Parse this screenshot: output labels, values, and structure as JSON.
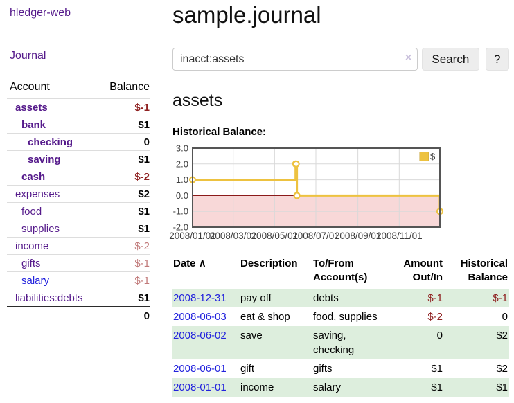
{
  "sidebar": {
    "app_title": "hledger-web",
    "journal_link": "Journal",
    "accounts": {
      "headers": {
        "account": "Account",
        "balance": "Balance"
      },
      "rows": [
        {
          "name": "assets",
          "depth": 1,
          "bold": true,
          "balance": "$-1",
          "balance_class": "neg-strong"
        },
        {
          "name": "bank",
          "depth": 2,
          "bold": true,
          "balance": "$1",
          "balance_class": "pos"
        },
        {
          "name": "checking",
          "depth": 3,
          "bold": true,
          "balance": "0",
          "balance_class": "pos"
        },
        {
          "name": "saving",
          "depth": 3,
          "bold": true,
          "balance": "$1",
          "balance_class": "pos"
        },
        {
          "name": "cash",
          "depth": 2,
          "bold": true,
          "balance": "$-2",
          "balance_class": "neg-strong"
        },
        {
          "name": "expenses",
          "depth": 1,
          "bold": false,
          "balance": "$2",
          "balance_class": "pos"
        },
        {
          "name": "food",
          "depth": 2,
          "bold": false,
          "balance": "$1",
          "balance_class": "pos"
        },
        {
          "name": "supplies",
          "depth": 2,
          "bold": false,
          "balance": "$1",
          "balance_class": "pos"
        },
        {
          "name": "income",
          "depth": 1,
          "bold": false,
          "balance": "$-2",
          "balance_class": "neg-soft"
        },
        {
          "name": "gifts",
          "depth": 2,
          "bold": false,
          "balance": "$-1",
          "balance_class": "neg-soft"
        },
        {
          "name": "salary",
          "depth": 2,
          "bold": false,
          "balance": "$-1",
          "balance_class": "neg-soft",
          "link_color": "blue"
        },
        {
          "name": "liabilities:debts",
          "depth": 1,
          "bold": false,
          "balance": "$1",
          "balance_class": "pos"
        }
      ],
      "total": "0"
    }
  },
  "main": {
    "title": "sample.journal",
    "search": {
      "value": "inacct:assets",
      "clear_icon": "×",
      "search_button": "Search",
      "help_button": "?"
    },
    "account_heading": "assets",
    "chart": {
      "heading": "Historical Balance:",
      "chart_data": {
        "type": "line",
        "step": true,
        "title": "Historical Balance",
        "legend_position": "top-right",
        "grid": true,
        "series": [
          {
            "name": "$",
            "color": "#edc240",
            "points": [
              [
                "2008-01-01",
                1
              ],
              [
                "2008-06-01",
                2
              ],
              [
                "2008-06-02",
                2
              ],
              [
                "2008-06-03",
                0
              ],
              [
                "2008-12-31",
                -1
              ]
            ]
          }
        ],
        "x_range": [
          "2008-01-01",
          "2008-12-31"
        ],
        "x_ticks": [
          "2008/01/01",
          "2008/03/01",
          "2008/05/01",
          "2008/07/01",
          "2008/09/01",
          "2008/11/01"
        ],
        "y_ticks": [
          3.0,
          2.0,
          1.0,
          0.0,
          -1.0,
          -2.0
        ],
        "ylim": [
          -2,
          3
        ],
        "zero_line_color": "#8b1a1a",
        "negative_region_color": "#f8d8d8",
        "gridline_color": "#d9d9d9",
        "border_color": "#555555"
      }
    },
    "register": {
      "headers": {
        "date": "Date",
        "sort_icon": "∧",
        "description": "Description",
        "tofrom_line1": "To/From",
        "tofrom_line2": "Account(s)",
        "amount_line1": "Amount",
        "amount_line2": "Out/In",
        "balance_line1": "Historical",
        "balance_line2": "Balance"
      },
      "rows": [
        {
          "date": "2008-12-31",
          "description": "pay off",
          "accounts": "debts",
          "amount": "$-1",
          "amount_neg": true,
          "balance": "$-1",
          "balance_neg": true
        },
        {
          "date": "2008-06-03",
          "description": "eat & shop",
          "accounts": "food, supplies",
          "amount": "$-2",
          "amount_neg": true,
          "balance": "0",
          "balance_neg": false
        },
        {
          "date": "2008-06-02",
          "description": "save",
          "accounts": "saving,\nchecking",
          "amount": "0",
          "amount_neg": false,
          "balance": "$2",
          "balance_neg": false
        },
        {
          "date": "2008-06-01",
          "description": "gift",
          "accounts": "gifts",
          "amount": "$1",
          "amount_neg": false,
          "balance": "$2",
          "balance_neg": false
        },
        {
          "date": "2008-01-01",
          "description": "income",
          "accounts": "salary",
          "amount": "$1",
          "amount_neg": false,
          "balance": "$1",
          "balance_neg": false
        }
      ]
    }
  },
  "colors": {
    "link_purple": "#551a8b",
    "link_blue": "#2222dd",
    "negative_strong": "#8f2121",
    "negative_soft": "#c17a7a",
    "row_stripe_green": "#ddeedd",
    "series_gold": "#edc240",
    "negative_region_pink": "#f8d8d8",
    "zero_line_red": "#8b1a1a"
  }
}
